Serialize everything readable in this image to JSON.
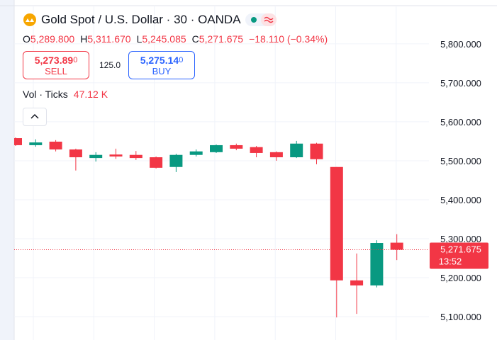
{
  "chart_data": {
    "type": "candlestick",
    "title": "Gold Spot / U.S. Dollar · 30 · OANDA",
    "ohlc_legend": [
      {
        "label": "O",
        "value": "5,289.800"
      },
      {
        "label": "H",
        "value": "5,311.670"
      },
      {
        "label": "L",
        "value": "5,245.085"
      },
      {
        "label": "C",
        "value": "5,271.675"
      }
    ],
    "change": "−18.110 (−0.34%)",
    "sell": {
      "price": "5,273.89",
      "pip": "0",
      "label": "SELL"
    },
    "buy": {
      "price": "5,275.14",
      "pip": "0",
      "label": "BUY"
    },
    "spread": "125.0",
    "volume_label": "Vol · Ticks",
    "volume_value": "47.12 K",
    "last_price_label": "5,271.675",
    "countdown": "13:52",
    "up_color": "#089981",
    "down_color": "#f23645",
    "grid": true,
    "ylim": [
      5040,
      5898
    ],
    "yticks": [
      {
        "value": 5100,
        "label": "5,100.000"
      },
      {
        "value": 5200,
        "label": "5,200.000"
      },
      {
        "value": 5300,
        "label": "5,300.000"
      },
      {
        "value": 5400,
        "label": "5,400.000"
      },
      {
        "value": 5500,
        "label": "5,500.000"
      },
      {
        "value": 5600,
        "label": "5,600.000"
      },
      {
        "value": 5700,
        "label": "5,700.000"
      },
      {
        "value": 5800,
        "label": "5,800.000"
      }
    ],
    "open": [
      5558,
      5540,
      5549,
      5529,
      5507,
      5516,
      5515,
      5509,
      5484,
      5515,
      5522,
      5540,
      5535,
      5522,
      5509,
      5544,
      5484,
      5193,
      5180,
      5289.8
    ],
    "high": [
      5560,
      5555,
      5553,
      5531,
      5522,
      5531,
      5525,
      5511,
      5518,
      5529,
      5542,
      5544,
      5538,
      5524,
      5551,
      5546,
      5484,
      5262,
      5296,
      5311.67
    ],
    "low": [
      5538,
      5536,
      5524,
      5475,
      5498,
      5505,
      5502,
      5480,
      5471,
      5511,
      5520,
      5527,
      5509,
      5500,
      5507,
      5491,
      5098,
      5107,
      5175,
      5245.085
    ],
    "close": [
      5540,
      5547,
      5529,
      5509,
      5515,
      5511,
      5507,
      5482,
      5515,
      5524,
      5540,
      5531,
      5520,
      5509,
      5544,
      5504,
      5193,
      5180,
      5289,
      5271.675
    ]
  }
}
